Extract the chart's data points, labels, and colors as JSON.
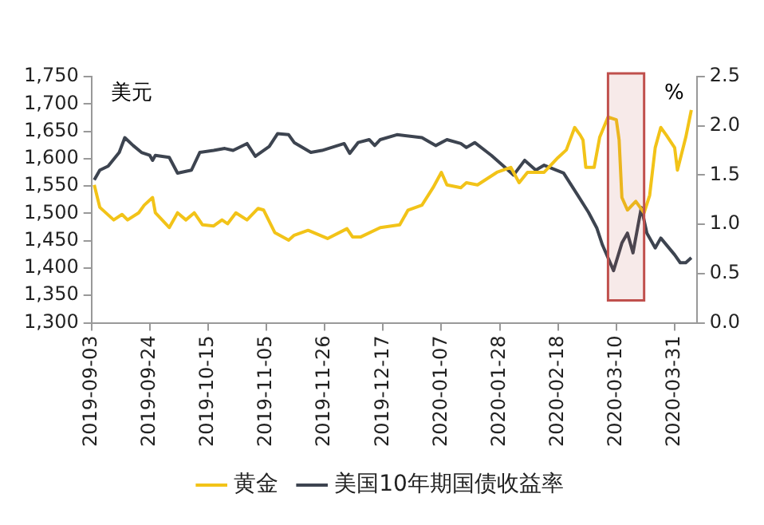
{
  "chart_data": {
    "type": "line",
    "ylabel": "美元",
    "y2label": "%",
    "legend": "bottom",
    "grid": false,
    "marker": "none",
    "xlim": [
      "2019-09-03",
      "2020-04-08"
    ],
    "xticks": [
      "2019-09-03",
      "2019-09-24",
      "2019-10-15",
      "2019-11-05",
      "2019-11-26",
      "2019-12-17",
      "2020-01-07",
      "2020-01-28",
      "2020-02-18",
      "2020-03-10",
      "2020-03-31"
    ],
    "ylim": [
      1300,
      1750
    ],
    "yticks": [
      {
        "value": 1300,
        "label": "1,300"
      },
      {
        "value": 1350,
        "label": "1,350"
      },
      {
        "value": 1400,
        "label": "1,400"
      },
      {
        "value": 1450,
        "label": "1,450"
      },
      {
        "value": 1500,
        "label": "1,500"
      },
      {
        "value": 1550,
        "label": "1,550"
      },
      {
        "value": 1600,
        "label": "1,600"
      },
      {
        "value": 1650,
        "label": "1,650"
      },
      {
        "value": 1700,
        "label": "1,700"
      },
      {
        "value": 1750,
        "label": "1,750"
      }
    ],
    "y2lim": [
      0,
      2.5
    ],
    "y2ticks": [
      {
        "value": 0,
        "label": "0.0"
      },
      {
        "value": 0.5,
        "label": "0.5"
      },
      {
        "value": 1,
        "label": "1.0"
      },
      {
        "value": 1.5,
        "label": "1.5"
      },
      {
        "value": 2,
        "label": "2.0"
      },
      {
        "value": 2.5,
        "label": "2.5"
      }
    ],
    "bands": [
      {
        "axis": "x",
        "from": "2020-03-07",
        "to": "2020-03-20",
        "color": "#c0504d"
      }
    ],
    "series": [
      {
        "name": "黄金",
        "color": "#f2c318",
        "x": [
          "2019-09-04",
          "2019-09-06",
          "2019-09-11",
          "2019-09-14",
          "2019-09-16",
          "2019-09-20",
          "2019-09-22",
          "2019-09-25",
          "2019-09-26",
          "2019-10-01",
          "2019-10-04",
          "2019-10-07",
          "2019-10-10",
          "2019-10-13",
          "2019-10-17",
          "2019-10-20",
          "2019-10-22",
          "2019-10-25",
          "2019-10-29",
          "2019-11-02",
          "2019-11-04",
          "2019-11-08",
          "2019-11-13",
          "2019-11-15",
          "2019-11-20",
          "2019-11-27",
          "2019-12-04",
          "2019-12-06",
          "2019-12-09",
          "2019-12-16",
          "2019-12-23",
          "2019-12-26",
          "2019-12-31",
          "2020-01-04",
          "2020-01-07",
          "2020-01-09",
          "2020-01-14",
          "2020-01-16",
          "2020-01-20",
          "2020-01-27",
          "2020-02-01",
          "2020-02-04",
          "2020-02-07",
          "2020-02-13",
          "2020-02-18",
          "2020-02-21",
          "2020-02-24",
          "2020-02-26",
          "2020-02-27",
          "2020-02-28",
          "2020-03-02",
          "2020-03-04",
          "2020-03-07",
          "2020-03-10",
          "2020-03-11",
          "2020-03-12",
          "2020-03-14",
          "2020-03-17",
          "2020-03-20",
          "2020-03-22",
          "2020-03-24",
          "2020-03-26",
          "2020-03-28",
          "2020-03-31",
          "2020-04-01",
          "2020-04-04",
          "2020-04-06"
        ],
        "values": [
          1552,
          1511,
          1488,
          1498,
          1488,
          1501,
          1515,
          1529,
          1501,
          1474,
          1501,
          1488,
          1501,
          1479,
          1477,
          1488,
          1481,
          1501,
          1488,
          1509,
          1506,
          1465,
          1451,
          1460,
          1469,
          1454,
          1472,
          1457,
          1457,
          1474,
          1479,
          1506,
          1515,
          1547,
          1575,
          1552,
          1547,
          1556,
          1552,
          1575,
          1584,
          1556,
          1575,
          1575,
          1602,
          1616,
          1657,
          1643,
          1634,
          1584,
          1584,
          1639,
          1676,
          1671,
          1634,
          1529,
          1506,
          1522,
          1501,
          1533,
          1620,
          1657,
          1643,
          1620,
          1579,
          1639,
          1689
        ]
      },
      {
        "name": "美国10年期国债收益率",
        "color": "#3d4450",
        "axis": "y2",
        "x": [
          "2019-09-04",
          "2019-09-06",
          "2019-09-09",
          "2019-09-13",
          "2019-09-15",
          "2019-09-18",
          "2019-09-21",
          "2019-09-24",
          "2019-09-25",
          "2019-09-26",
          "2019-10-01",
          "2019-10-04",
          "2019-10-09",
          "2019-10-12",
          "2019-10-17",
          "2019-10-21",
          "2019-10-24",
          "2019-10-29",
          "2019-11-01",
          "2019-11-06",
          "2019-11-09",
          "2019-11-13",
          "2019-11-15",
          "2019-11-21",
          "2019-11-25",
          "2019-12-03",
          "2019-12-05",
          "2019-12-08",
          "2019-12-12",
          "2019-12-14",
          "2019-12-16",
          "2019-12-22",
          "2019-12-31",
          "2020-01-05",
          "2020-01-09",
          "2020-01-14",
          "2020-01-16",
          "2020-01-19",
          "2020-01-25",
          "2020-01-29",
          "2020-02-02",
          "2020-02-06",
          "2020-02-10",
          "2020-02-13",
          "2020-02-20",
          "2020-02-25",
          "2020-02-29",
          "2020-03-03",
          "2020-03-05",
          "2020-03-09",
          "2020-03-12",
          "2020-03-14",
          "2020-03-16",
          "2020-03-19",
          "2020-03-21",
          "2020-03-24",
          "2020-03-26",
          "2020-03-31",
          "2020-04-02",
          "2020-04-04",
          "2020-04-06"
        ],
        "values": [
          1.45,
          1.55,
          1.59,
          1.73,
          1.88,
          1.8,
          1.73,
          1.7,
          1.65,
          1.7,
          1.68,
          1.52,
          1.55,
          1.73,
          1.75,
          1.77,
          1.75,
          1.82,
          1.69,
          1.79,
          1.92,
          1.91,
          1.83,
          1.73,
          1.75,
          1.82,
          1.72,
          1.83,
          1.86,
          1.8,
          1.86,
          1.91,
          1.88,
          1.8,
          1.86,
          1.82,
          1.78,
          1.83,
          1.7,
          1.6,
          1.5,
          1.65,
          1.55,
          1.6,
          1.52,
          1.3,
          1.12,
          0.96,
          0.79,
          0.53,
          0.81,
          0.91,
          0.71,
          1.17,
          0.91,
          0.76,
          0.86,
          0.69,
          0.61,
          0.61,
          0.66
        ]
      }
    ]
  }
}
